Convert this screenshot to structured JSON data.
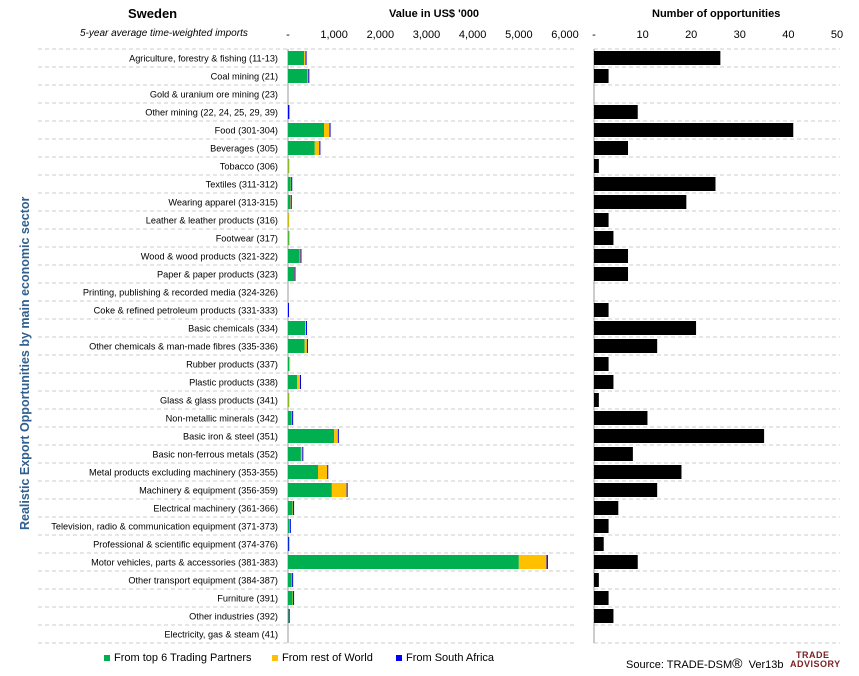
{
  "header": {
    "country": "Sweden",
    "subtitle": "5-year average time-weighted imports",
    "value_title": "Value in US$ '000",
    "opp_title": "Number of opportunities",
    "y_axis_title": "Realistic Export Opportunities by main economic sector"
  },
  "legend": [
    {
      "label": "From top 6 Trading Partners",
      "color": "#00b050"
    },
    {
      "label": "From rest of World",
      "color": "#ffc000"
    },
    {
      "label": "From South Africa",
      "color": "#0000ff"
    }
  ],
  "footer": {
    "source": "Source: TRADE-DSM",
    "reg_mark": "®",
    "version": "Ver13b",
    "logo_top": "TRADE",
    "logo_bottom": "ADVISORY"
  },
  "chart_data": [
    {
      "type": "bar",
      "orientation": "horizontal",
      "stacked": true,
      "title": "Value in US$ '000",
      "xlim": [
        0,
        6000
      ],
      "x_ticks": [
        "-",
        "1,000",
        "2,000",
        "3,000",
        "4,000",
        "5,000",
        "6,000"
      ],
      "x_tick_values": [
        0,
        1000,
        2000,
        3000,
        4000,
        5000,
        6000
      ],
      "categories": [
        "Agriculture, forestry & fishing (11-13)",
        "Coal mining (21)",
        "Gold & uranium ore mining (23)",
        "Other mining (22, 24, 25, 29, 39)",
        "Food (301-304)",
        "Beverages (305)",
        "Tobacco (306)",
        "Textiles (311-312)",
        "Wearing apparel (313-315)",
        "Leather & leather products (316)",
        "Footwear (317)",
        "Wood & wood products (321-322)",
        "Paper & paper products (323)",
        "Printing, publishing & recorded media (324-326)",
        "Coke & refined petroleum products (331-333)",
        "Basic chemicals (334)",
        "Other chemicals & man-made fibres (335-336)",
        "Rubber products (337)",
        "Plastic products (338)",
        "Glass & glass products (341)",
        "Non-metallic minerals (342)",
        "Basic iron & steel (351)",
        "Basic non-ferrous metals (352)",
        "Metal products excluding machinery (353-355)",
        "Machinery & equipment (356-359)",
        "Electrical machinery (361-366)",
        "Television, radio & communication equipment (371-373)",
        "Professional & scientific equipment (374-376)",
        "Motor vehicles, parts & accessories (381-383)",
        "Other transport equipment (384-387)",
        "Furniture (391)",
        "Other industries (392)",
        "Electricity, gas & steam (41)"
      ],
      "series": [
        {
          "name": "From top 6 Trading Partners",
          "color": "#00b050",
          "values": [
            350,
            420,
            0,
            0,
            780,
            580,
            10,
            60,
            50,
            5,
            15,
            250,
            130,
            0,
            0,
            370,
            360,
            25,
            200,
            10,
            80,
            1000,
            280,
            650,
            950,
            100,
            30,
            5,
            5000,
            80,
            100,
            10,
            0
          ]
        },
        {
          "name": "From rest of World",
          "color": "#ffc000",
          "values": [
            30,
            20,
            0,
            0,
            120,
            100,
            5,
            10,
            10,
            5,
            15,
            20,
            10,
            0,
            0,
            20,
            50,
            10,
            60,
            5,
            10,
            80,
            30,
            200,
            320,
            10,
            10,
            0,
            600,
            10,
            10,
            5,
            0
          ]
        },
        {
          "name": "From South Africa",
          "color": "#0000ff",
          "values": [
            10,
            5,
            0,
            30,
            5,
            5,
            0,
            5,
            10,
            0,
            0,
            5,
            5,
            0,
            15,
            10,
            15,
            0,
            20,
            0,
            20,
            20,
            5,
            10,
            20,
            20,
            15,
            10,
            30,
            10,
            15,
            10,
            0
          ]
        }
      ]
    },
    {
      "type": "bar",
      "orientation": "horizontal",
      "title": "Number of opportunities",
      "xlim": [
        0,
        50
      ],
      "x_ticks": [
        "-",
        "10",
        "20",
        "30",
        "40",
        "50"
      ],
      "x_tick_values": [
        0,
        10,
        20,
        30,
        40,
        50
      ],
      "series": [
        {
          "name": "Number of opportunities",
          "color": "#000000",
          "values": [
            26,
            3,
            0,
            9,
            41,
            7,
            1,
            25,
            19,
            3,
            4,
            7,
            7,
            0,
            3,
            21,
            13,
            3,
            4,
            1,
            11,
            35,
            8,
            18,
            13,
            5,
            3,
            2,
            9,
            1,
            3,
            4,
            0
          ]
        }
      ]
    }
  ]
}
